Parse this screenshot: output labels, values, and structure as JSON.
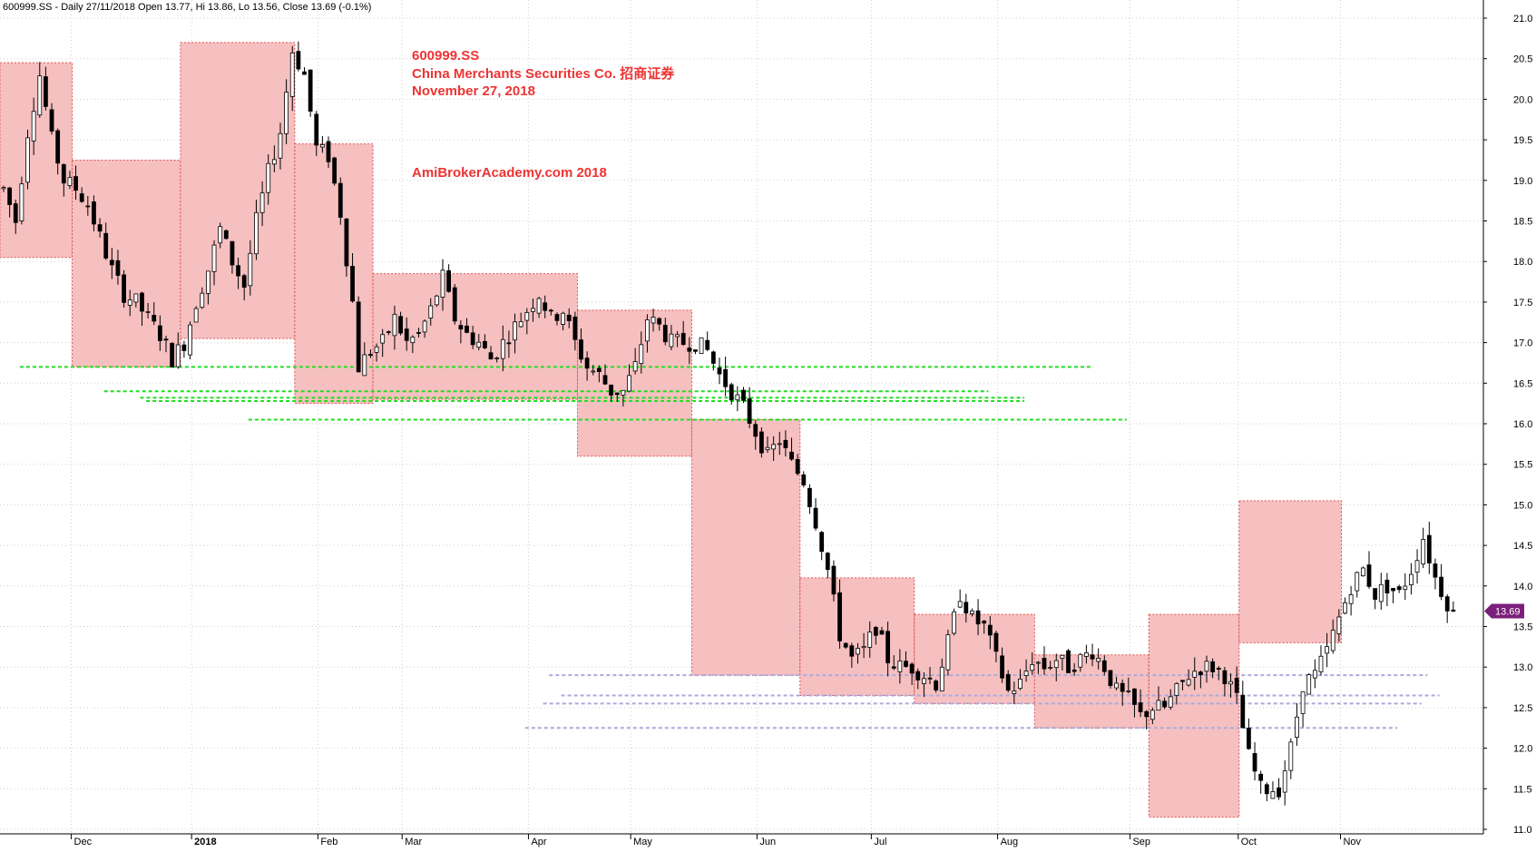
{
  "header": {
    "info_line": "600999.SS - Daily 27/11/2018 Open 13.77, Hi 13.86, Lo 13.56, Close 13.69 (-0.1%)"
  },
  "annotation": {
    "symbol": "600999.SS",
    "company": "China Merchants Securities Co.  招商证券",
    "date": "November 27, 2018",
    "watermark": "AmiBrokerAcademy.com  2018"
  },
  "price_badge": "13.69",
  "colors": {
    "box_fill": "#f4b5b5",
    "box_border": "#e05050",
    "up_candle": "#ffffff",
    "down_candle": "#000000",
    "support_lines": "#22dd22",
    "lower_lines": "#aaaadd",
    "annotation_text": "#ee3333",
    "badge": "#7a1f7a"
  },
  "chart_data": {
    "type": "candlestick",
    "title": "600999.SS - Daily 27/11/2018 Open 13.77, Hi 13.86, Lo 13.56, Close 13.69 (-0.1%)",
    "xlabel": "",
    "ylabel": "",
    "ylim": [
      11.0,
      21.0
    ],
    "y_ticks": [
      "11.0",
      "11.5",
      "12.0",
      "12.5",
      "13.0",
      "13.5",
      "14.0",
      "14.5",
      "15.0",
      "15.5",
      "16.0",
      "16.5",
      "17.0",
      "17.5",
      "18.0",
      "18.5",
      "19.0",
      "19.5",
      "20.0",
      "20.5",
      "21.0"
    ],
    "x_ticks": [
      {
        "label": "Dec",
        "bar": 12,
        "bold": false
      },
      {
        "label": "2018",
        "bar": 32,
        "bold": true
      },
      {
        "label": "Feb",
        "bar": 53,
        "bold": false
      },
      {
        "label": "Mar",
        "bar": 67,
        "bold": false
      },
      {
        "label": "Apr",
        "bar": 88,
        "bold": false
      },
      {
        "label": "May",
        "bar": 105,
        "bold": false
      },
      {
        "label": "Jun",
        "bar": 126,
        "bold": false
      },
      {
        "label": "Jul",
        "bar": 145,
        "bold": false
      },
      {
        "label": "Aug",
        "bar": 166,
        "bold": false
      },
      {
        "label": "Sep",
        "bar": 188,
        "bold": false
      },
      {
        "label": "Oct",
        "bar": 206,
        "bold": false
      },
      {
        "label": "Nov",
        "bar": 223,
        "bold": false
      }
    ],
    "grid": true,
    "bars": 242,
    "last_close": 13.69,
    "anchors": [
      [
        0,
        18.9
      ],
      [
        2,
        18.5
      ],
      [
        4,
        19.6
      ],
      [
        6,
        20.3
      ],
      [
        8,
        19.5
      ],
      [
        10,
        19.0
      ],
      [
        12,
        18.9
      ],
      [
        14,
        18.7
      ],
      [
        16,
        18.3
      ],
      [
        18,
        17.9
      ],
      [
        20,
        17.6
      ],
      [
        22,
        17.5
      ],
      [
        24,
        17.3
      ],
      [
        26,
        17.1
      ],
      [
        28,
        16.8
      ],
      [
        30,
        17.0
      ],
      [
        32,
        17.5
      ],
      [
        34,
        17.9
      ],
      [
        36,
        18.4
      ],
      [
        38,
        18.0
      ],
      [
        40,
        17.7
      ],
      [
        42,
        18.5
      ],
      [
        44,
        19.1
      ],
      [
        46,
        19.6
      ],
      [
        48,
        20.6
      ],
      [
        50,
        20.3
      ],
      [
        52,
        19.4
      ],
      [
        54,
        19.3
      ],
      [
        56,
        18.6
      ],
      [
        58,
        17.5
      ],
      [
        59,
        16.7
      ],
      [
        61,
        16.9
      ],
      [
        63,
        17.0
      ],
      [
        65,
        17.3
      ],
      [
        67,
        17.0
      ],
      [
        69,
        17.1
      ],
      [
        71,
        17.4
      ],
      [
        73,
        17.8
      ],
      [
        75,
        17.3
      ],
      [
        77,
        17.1
      ],
      [
        79,
        17.0
      ],
      [
        81,
        16.8
      ],
      [
        83,
        17.0
      ],
      [
        85,
        17.2
      ],
      [
        87,
        17.4
      ],
      [
        89,
        17.6
      ],
      [
        91,
        17.3
      ],
      [
        93,
        17.4
      ],
      [
        95,
        17.0
      ],
      [
        97,
        16.7
      ],
      [
        99,
        16.6
      ],
      [
        101,
        16.4
      ],
      [
        103,
        16.4
      ],
      [
        105,
        16.7
      ],
      [
        107,
        17.3
      ],
      [
        109,
        17.2
      ],
      [
        111,
        17.0
      ],
      [
        113,
        17.0
      ],
      [
        115,
        17.0
      ],
      [
        117,
        16.9
      ],
      [
        119,
        16.6
      ],
      [
        121,
        16.4
      ],
      [
        123,
        16.2
      ],
      [
        125,
        15.9
      ],
      [
        127,
        15.6
      ],
      [
        129,
        15.8
      ],
      [
        131,
        15.5
      ],
      [
        133,
        15.3
      ],
      [
        135,
        14.8
      ],
      [
        137,
        14.2
      ],
      [
        139,
        13.4
      ],
      [
        141,
        13.1
      ],
      [
        143,
        13.2
      ],
      [
        145,
        13.5
      ],
      [
        147,
        13.1
      ],
      [
        149,
        13.0
      ],
      [
        151,
        13.0
      ],
      [
        153,
        12.9
      ],
      [
        155,
        12.8
      ],
      [
        157,
        13.3
      ],
      [
        159,
        13.9
      ],
      [
        161,
        13.6
      ],
      [
        163,
        13.5
      ],
      [
        165,
        13.1
      ],
      [
        167,
        12.7
      ],
      [
        169,
        12.8
      ],
      [
        171,
        13.1
      ],
      [
        173,
        13.0
      ],
      [
        175,
        13.1
      ],
      [
        177,
        13.0
      ],
      [
        179,
        13.1
      ],
      [
        181,
        13.2
      ],
      [
        183,
        13.0
      ],
      [
        185,
        12.7
      ],
      [
        187,
        12.6
      ],
      [
        189,
        12.4
      ],
      [
        191,
        12.5
      ],
      [
        193,
        12.5
      ],
      [
        195,
        12.7
      ],
      [
        197,
        12.9
      ],
      [
        199,
        13.0
      ],
      [
        201,
        13.0
      ],
      [
        203,
        12.9
      ],
      [
        205,
        12.6
      ],
      [
        207,
        11.9
      ],
      [
        209,
        11.5
      ],
      [
        211,
        11.5
      ],
      [
        212,
        11.5
      ],
      [
        214,
        12.0
      ],
      [
        216,
        12.8
      ],
      [
        218,
        12.9
      ],
      [
        220,
        13.2
      ],
      [
        222,
        13.6
      ],
      [
        224,
        14.0
      ],
      [
        226,
        14.2
      ],
      [
        228,
        13.9
      ],
      [
        230,
        14.0
      ],
      [
        232,
        13.9
      ],
      [
        234,
        14.2
      ],
      [
        236,
        14.6
      ],
      [
        238,
        14.1
      ],
      [
        240,
        13.8
      ],
      [
        241,
        13.69
      ]
    ],
    "boxes": [
      {
        "x0": 0,
        "x1": 12,
        "y0": 18.05,
        "y1": 20.45
      },
      {
        "x0": 12,
        "x1": 30,
        "y0": 16.7,
        "y1": 19.25
      },
      {
        "x0": 30,
        "x1": 49,
        "y0": 17.05,
        "y1": 20.7
      },
      {
        "x0": 49,
        "x1": 62,
        "y0": 16.25,
        "y1": 19.45
      },
      {
        "x0": 62,
        "x1": 96,
        "y0": 16.3,
        "y1": 17.85
      },
      {
        "x0": 96,
        "x1": 115,
        "y0": 15.6,
        "y1": 17.4
      },
      {
        "x0": 115,
        "x1": 133,
        "y0": 12.9,
        "y1": 16.05
      },
      {
        "x0": 133,
        "x1": 152,
        "y0": 12.65,
        "y1": 14.1
      },
      {
        "x0": 152,
        "x1": 172,
        "y0": 12.55,
        "y1": 13.65
      },
      {
        "x0": 172,
        "x1": 191,
        "y0": 12.25,
        "y1": 13.15
      },
      {
        "x0": 191,
        "x1": 206,
        "y0": 11.15,
        "y1": 13.65
      },
      {
        "x0": 206,
        "x1": 223,
        "y0": 13.3,
        "y1": 15.05
      }
    ],
    "support_lines": [
      {
        "x0": 3,
        "x1": 181,
        "y": 16.7
      },
      {
        "x0": 17,
        "x1": 164,
        "y": 16.4
      },
      {
        "x0": 23,
        "x1": 170,
        "y": 16.32
      },
      {
        "x0": 24,
        "x1": 170,
        "y": 16.28
      },
      {
        "x0": 41,
        "x1": 187,
        "y": 16.05
      }
    ],
    "lower_lines": [
      {
        "x0": 91,
        "x1": 237,
        "y": 12.9
      },
      {
        "x0": 93,
        "x1": 239,
        "y": 12.65
      },
      {
        "x0": 90,
        "x1": 236,
        "y": 12.55
      },
      {
        "x0": 87,
        "x1": 232,
        "y": 12.25
      }
    ]
  }
}
